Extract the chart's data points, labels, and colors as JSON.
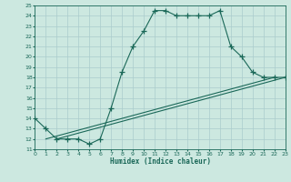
{
  "xlabel": "Humidex (Indice chaleur)",
  "bg_color": "#cce8e0",
  "grid_color": "#aacccc",
  "line_color": "#1a6858",
  "xmin": 0,
  "xmax": 23,
  "ymin": 11,
  "ymax": 25,
  "line1_x": [
    0,
    1,
    2,
    3,
    4,
    5,
    6,
    7,
    8,
    9,
    10,
    11,
    12,
    13,
    14,
    15,
    16,
    17,
    18,
    19,
    20,
    21,
    22,
    23
  ],
  "line1_y": [
    14,
    13,
    12,
    12,
    12,
    11.5,
    12,
    15,
    18.5,
    21,
    22.5,
    24.5,
    24.5,
    24,
    24,
    24,
    24,
    24.5,
    21,
    20,
    18.5,
    18,
    18,
    18
  ],
  "line2_x": [
    1,
    22
  ],
  "line2_y": [
    12,
    18
  ],
  "line3_x": [
    2,
    23
  ],
  "line3_y": [
    12,
    18
  ]
}
